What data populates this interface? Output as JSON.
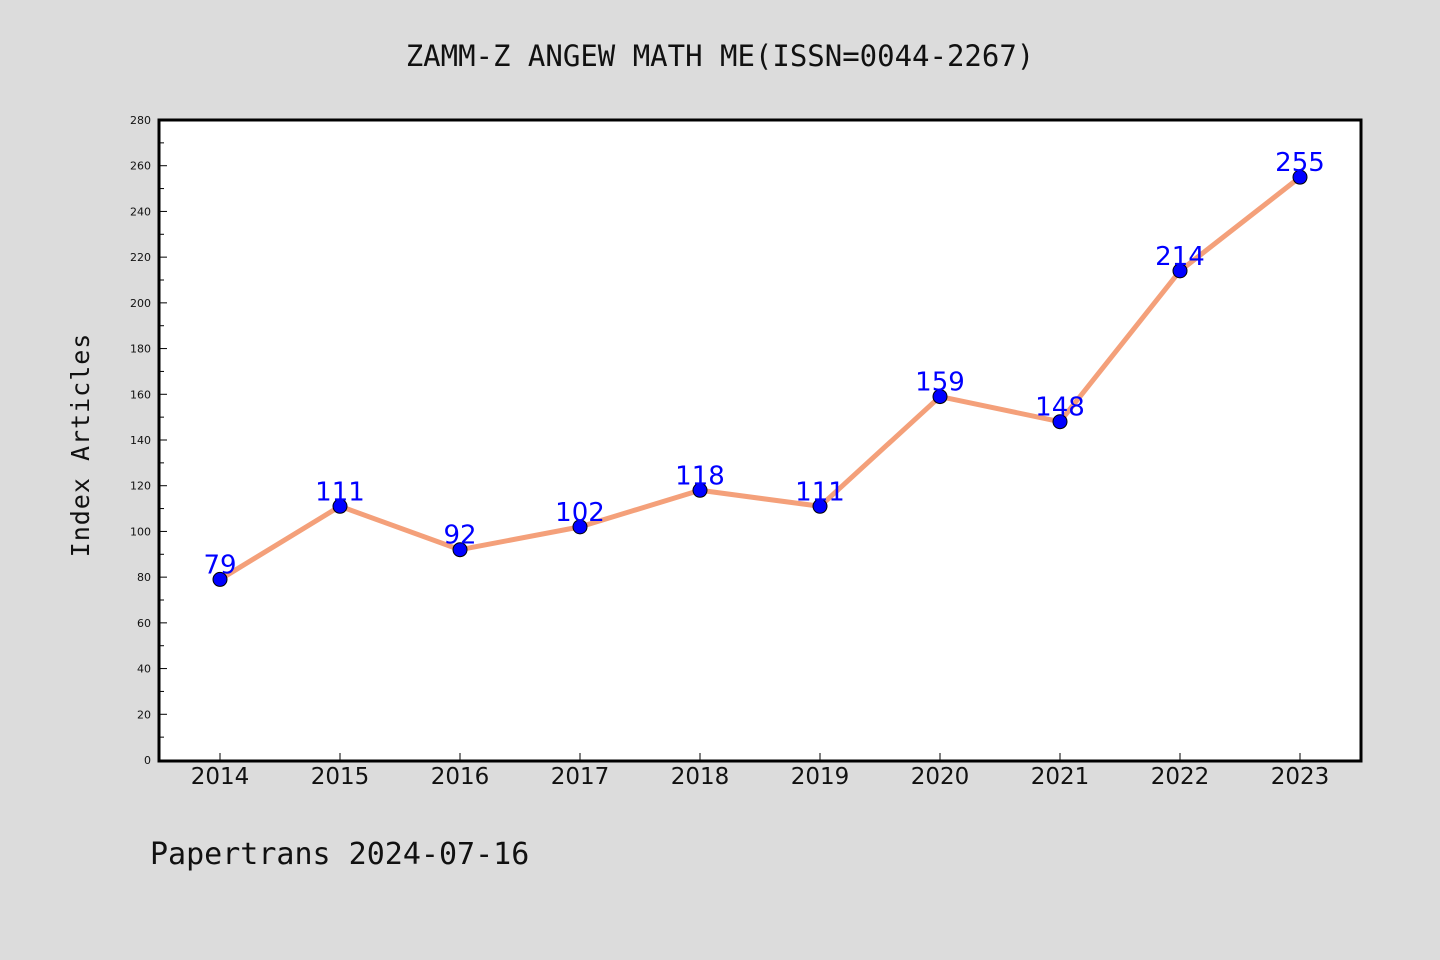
{
  "chart_data": {
    "type": "line",
    "title": "ZAMM-Z ANGEW MATH ME(ISSN=0044-2267)",
    "xlabel": "",
    "ylabel": "Index Articles",
    "categories": [
      "2014",
      "2015",
      "2016",
      "2017",
      "2018",
      "2019",
      "2020",
      "2021",
      "2022",
      "2023"
    ],
    "series": [
      {
        "values": [
          79,
          111,
          92,
          102,
          118,
          111,
          159,
          148,
          214,
          255
        ],
        "line_color": "#f4a07a",
        "marker_color": "#0000ff"
      }
    ],
    "ylim": [
      0,
      280
    ],
    "yticks": [
      "0",
      "20",
      "40",
      "60",
      "80",
      "100",
      "120",
      "140",
      "160",
      "180",
      "200",
      "220",
      "240",
      "260",
      "280"
    ],
    "grid": false,
    "data_labels": true
  },
  "footer": {
    "text": "Papertrans 2024-07-16"
  },
  "colors": {
    "background": "#dcdcdc",
    "plot_background": "#ffffff",
    "line": "#f4a07a",
    "marker": "#0000ff",
    "data_label": "#0000ff"
  }
}
